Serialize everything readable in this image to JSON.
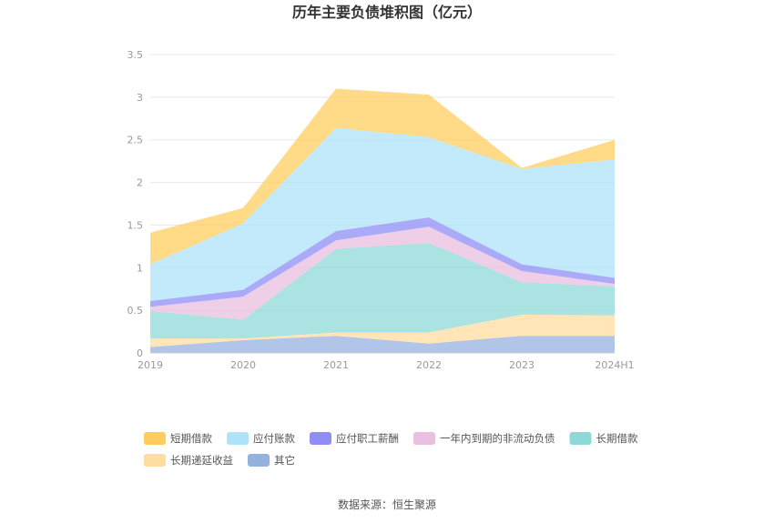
{
  "chart_data": {
    "type": "area",
    "stacked": true,
    "title": "历年主要负债堆积图（亿元）",
    "source": "数据来源：恒生聚源",
    "categories": [
      "2019",
      "2020",
      "2021",
      "2022",
      "2023",
      "2024H1"
    ],
    "y_ticks": [
      "0",
      "0.5",
      "1",
      "1.5",
      "2",
      "2.5",
      "3",
      "3.5"
    ],
    "ylim": [
      0,
      3.5
    ],
    "grid": true,
    "legend_position": "bottom",
    "series": [
      {
        "name": "其它",
        "color": "#95b2df",
        "values": [
          0.07,
          0.15,
          0.2,
          0.11,
          0.2,
          0.2
        ]
      },
      {
        "name": "长期递延收益",
        "color": "#ffdc9f",
        "values": [
          0.1,
          0.02,
          0.04,
          0.13,
          0.25,
          0.24
        ]
      },
      {
        "name": "长期借款",
        "color": "#8fd8d8",
        "values": [
          0.32,
          0.22,
          0.98,
          1.05,
          0.38,
          0.34
        ]
      },
      {
        "name": "一年内到期的非流动负债",
        "color": "#eabfdf",
        "values": [
          0.05,
          0.27,
          0.1,
          0.19,
          0.13,
          0.03
        ]
      },
      {
        "name": "应付职工薪酬",
        "color": "#8e8ef5",
        "values": [
          0.07,
          0.08,
          0.11,
          0.11,
          0.08,
          0.07
        ]
      },
      {
        "name": "应付账款",
        "color": "#aee3fa",
        "values": [
          0.43,
          0.78,
          1.21,
          0.94,
          1.12,
          1.39
        ]
      },
      {
        "name": "短期借款",
        "color": "#ffcd5f",
        "values": [
          0.37,
          0.18,
          0.46,
          0.5,
          0.01,
          0.23
        ]
      }
    ],
    "legend_order": [
      "短期借款",
      "应付账款",
      "应付职工薪酬",
      "一年内到期的非流动负债",
      "长期借款",
      "长期递延收益",
      "其它"
    ]
  }
}
